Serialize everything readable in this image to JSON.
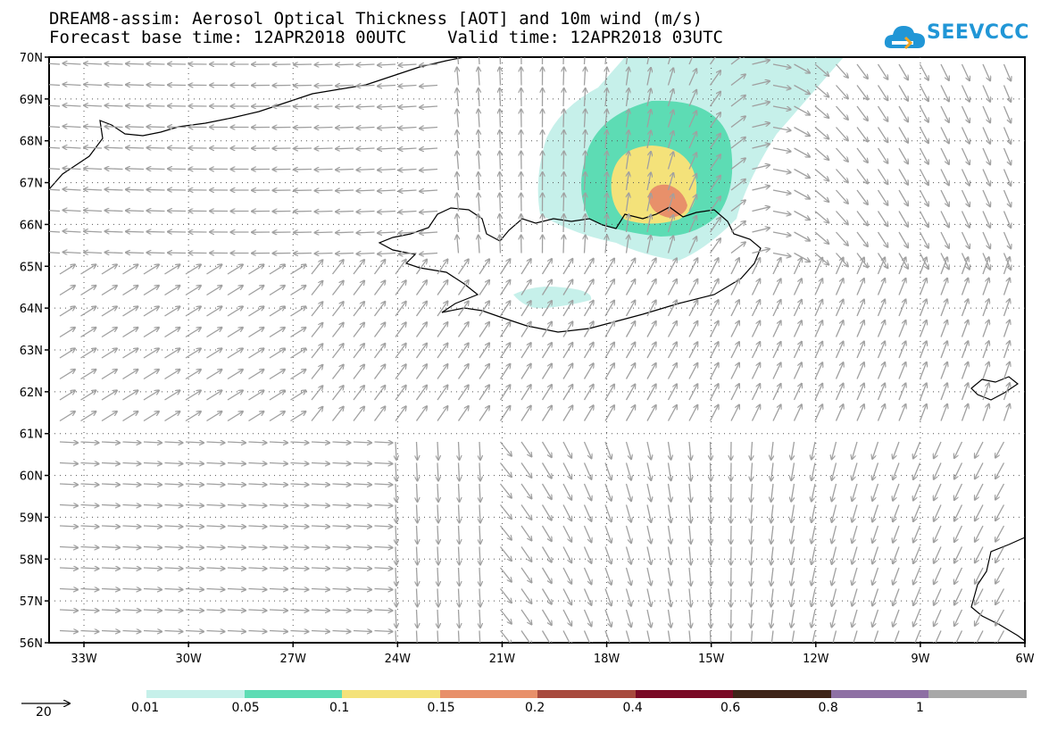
{
  "title": {
    "line1": "DREAM8-assim: Aerosol Optical Thickness [AOT] and 10m wind (m/s)",
    "line2": "Forecast base time: 12APR2018 00UTC    Valid time: 12APR2018 03UTC"
  },
  "logo": {
    "text": "SEEVCCC",
    "icon": "cloud-icon",
    "color": "#2196d6"
  },
  "axes": {
    "lat_labels": [
      "70N",
      "69N",
      "68N",
      "67N",
      "66N",
      "65N",
      "64N",
      "63N",
      "62N",
      "61N",
      "60N",
      "59N",
      "58N",
      "57N",
      "56N"
    ],
    "lon_labels": [
      "33W",
      "30W",
      "27W",
      "24W",
      "21W",
      "18W",
      "15W",
      "12W",
      "9W",
      "6W"
    ],
    "lat_range": [
      56,
      70
    ],
    "lon_range": [
      -34,
      -6
    ]
  },
  "wind_reference": {
    "label": "20",
    "units": "m/s"
  },
  "colorbar": {
    "segments": [
      {
        "color": "#c6f0ea"
      },
      {
        "color": "#5ddcb4"
      },
      {
        "color": "#f4e27a"
      },
      {
        "color": "#e8906a"
      },
      {
        "color": "#a84a3e"
      },
      {
        "color": "#7a0a26"
      },
      {
        "color": "#3e2418"
      },
      {
        "color": "#8e70a4"
      },
      {
        "color": "#a8a8a8"
      }
    ],
    "labels": [
      "0.01",
      "0.05",
      "0.1",
      "0.15",
      "0.2",
      "0.4",
      "0.6",
      "0.8",
      "1"
    ]
  }
}
